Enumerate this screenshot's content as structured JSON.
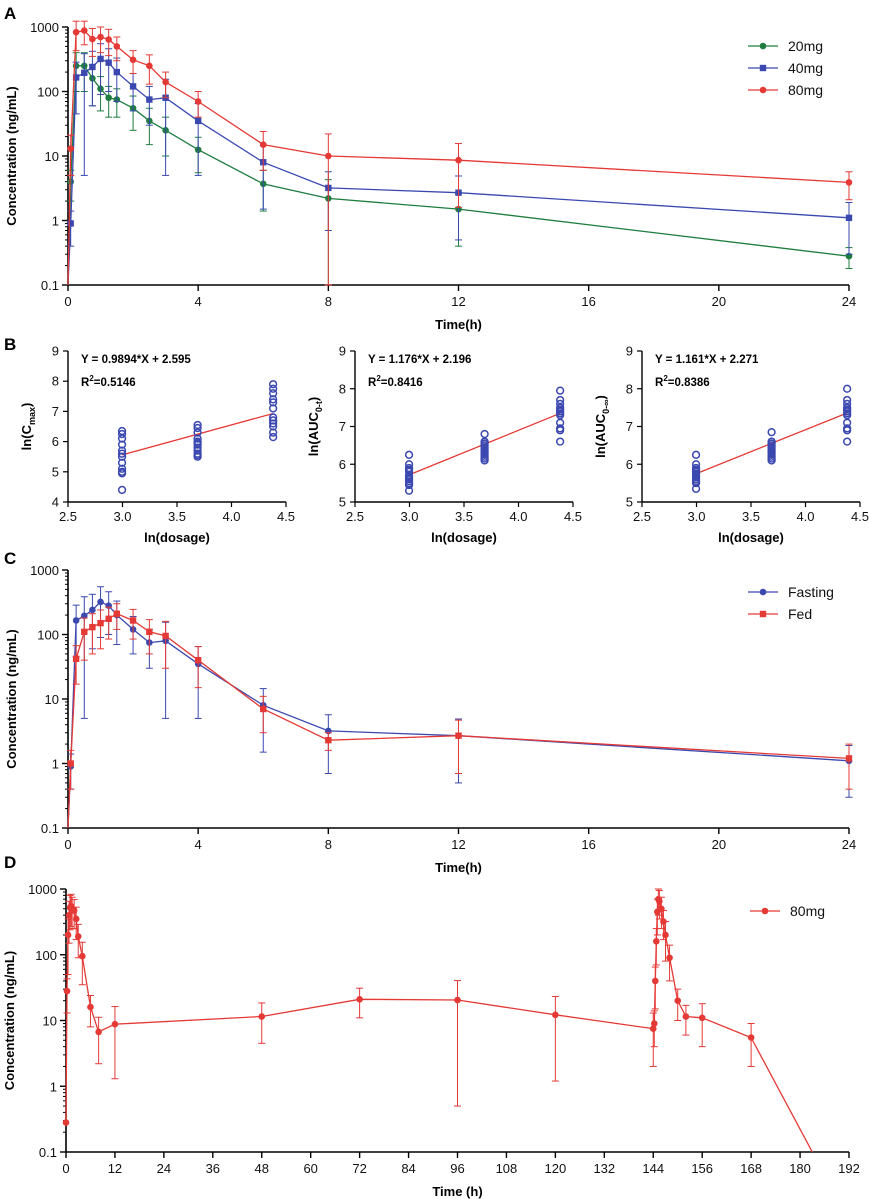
{
  "chart_data": [
    {
      "panel": "A",
      "type": "line",
      "xlabel": "Time(h)",
      "ylabel": "Concentration (ng/mL)",
      "yscale": "log",
      "ylim": [
        0.1,
        1000
      ],
      "xlim": [
        0,
        24
      ],
      "xticks": [
        "0",
        "4",
        "8",
        "12",
        "16",
        "20",
        "24"
      ],
      "yticks": [
        "0.1",
        "1",
        "10",
        "100",
        "1000"
      ],
      "legend_position": "top-right",
      "series": [
        {
          "name": "20mg",
          "color": "#1e7d3f",
          "marker": "circle",
          "x": [
            0,
            0.083,
            0.25,
            0.5,
            0.75,
            1,
            1.25,
            1.5,
            2,
            2.5,
            3,
            4,
            6,
            8,
            12,
            24
          ],
          "y": [
            0.1,
            4,
            250,
            250,
            160,
            110,
            80,
            75,
            55,
            35,
            25,
            12.5,
            3.7,
            2.2,
            1.5,
            0.28
          ],
          "err": [
            0,
            2,
            150,
            150,
            100,
            60,
            40,
            35,
            30,
            20,
            15,
            7,
            2.3,
            2.1,
            1.1,
            0.1
          ]
        },
        {
          "name": "40mg",
          "color": "#3a48b0",
          "marker": "square",
          "x": [
            0,
            0.083,
            0.25,
            0.5,
            0.75,
            1,
            1.25,
            1.5,
            2,
            2.5,
            3,
            4,
            6,
            8,
            12,
            24
          ],
          "y": [
            0.1,
            0.9,
            165,
            195,
            240,
            320,
            280,
            200,
            120,
            75,
            80,
            35,
            8,
            3.2,
            2.7,
            1.1
          ],
          "err": [
            0,
            0.5,
            120,
            190,
            180,
            230,
            180,
            130,
            70,
            45,
            75,
            30,
            6.5,
            2.5,
            2.2,
            0.8
          ]
        },
        {
          "name": "80mg",
          "color": "#e53935",
          "marker": "circle",
          "x": [
            0,
            0.083,
            0.25,
            0.5,
            0.75,
            1,
            1.25,
            1.5,
            2,
            2.5,
            3,
            4,
            6,
            8,
            12,
            24
          ],
          "y": [
            0.1,
            13,
            830,
            880,
            650,
            700,
            640,
            500,
            310,
            250,
            140,
            70,
            15,
            10,
            8.6,
            3.9
          ],
          "err": [
            0,
            8,
            400,
            350,
            300,
            300,
            280,
            200,
            120,
            120,
            60,
            30,
            9,
            12,
            7,
            1.8
          ]
        }
      ]
    },
    {
      "panel": "B1",
      "type": "scatter",
      "xlabel": "ln(dosage)",
      "ylabel_main": "ln(C",
      "ylabel_sub": "max",
      "ylabel_end": ")",
      "xlim": [
        2.5,
        4.5
      ],
      "ylim": [
        4,
        9
      ],
      "xticks": [
        "2.5",
        "3.0",
        "3.5",
        "4.0",
        "4.5"
      ],
      "yticks": [
        "4",
        "5",
        "6",
        "7",
        "8",
        "9"
      ],
      "equation": "Y = 0.9894*X + 2.595",
      "r2_prefix": "R",
      "r2_sup": "2",
      "r2_value": "=0.5146",
      "fit": {
        "slope": 0.9894,
        "intercept": 2.595,
        "x_range": [
          2.996,
          4.382
        ]
      },
      "points": {
        "x": [
          2.996,
          2.996,
          2.996,
          2.996,
          2.996,
          2.996,
          2.996,
          2.996,
          2.996,
          2.996,
          2.996,
          2.996,
          3.689,
          3.689,
          3.689,
          3.689,
          3.689,
          3.689,
          3.689,
          3.689,
          3.689,
          3.689,
          3.689,
          3.689,
          4.382,
          4.382,
          4.382,
          4.382,
          4.382,
          4.382,
          4.382,
          4.382,
          4.382,
          4.382,
          4.382,
          4.382
        ],
        "y": [
          6.35,
          6.25,
          6.1,
          5.9,
          5.7,
          5.6,
          5.5,
          5.3,
          5.1,
          5.0,
          4.95,
          4.4,
          6.55,
          6.45,
          6.3,
          6.1,
          6.0,
          5.95,
          5.9,
          5.8,
          5.7,
          5.6,
          5.55,
          5.5,
          7.9,
          7.75,
          7.6,
          7.4,
          7.3,
          7.1,
          6.8,
          6.7,
          6.6,
          6.5,
          6.3,
          6.15
        ]
      }
    },
    {
      "panel": "B2",
      "type": "scatter",
      "xlabel": "ln(dosage)",
      "ylabel_main": "ln(AUC",
      "ylabel_sub": "0-t",
      "ylabel_end": ")",
      "xlim": [
        2.5,
        4.5
      ],
      "ylim": [
        5,
        9
      ],
      "xticks": [
        "2.5",
        "3.0",
        "3.5",
        "4.0",
        "4.5"
      ],
      "yticks": [
        "5",
        "6",
        "7",
        "8",
        "9"
      ],
      "equation": "Y = 1.176*X + 2.196",
      "r2_prefix": "R",
      "r2_sup": "2",
      "r2_value": "=0.8416",
      "fit": {
        "slope": 1.176,
        "intercept": 2.196,
        "x_range": [
          2.996,
          4.382
        ]
      },
      "points": {
        "x": [
          2.996,
          2.996,
          2.996,
          2.996,
          2.996,
          2.996,
          2.996,
          2.996,
          2.996,
          2.996,
          2.996,
          2.996,
          3.689,
          3.689,
          3.689,
          3.689,
          3.689,
          3.689,
          3.689,
          3.689,
          3.689,
          3.689,
          3.689,
          3.689,
          4.382,
          4.382,
          4.382,
          4.382,
          4.382,
          4.382,
          4.382,
          4.382,
          4.382,
          4.382,
          4.382,
          4.382
        ],
        "y": [
          6.25,
          6.0,
          5.9,
          5.85,
          5.8,
          5.7,
          5.65,
          5.6,
          5.55,
          5.5,
          5.45,
          5.3,
          6.8,
          6.6,
          6.55,
          6.5,
          6.45,
          6.4,
          6.35,
          6.3,
          6.25,
          6.2,
          6.15,
          6.1,
          7.95,
          7.7,
          7.6,
          7.5,
          7.45,
          7.4,
          7.35,
          7.3,
          7.1,
          6.95,
          6.9,
          6.6
        ]
      }
    },
    {
      "panel": "B3",
      "type": "scatter",
      "xlabel": "ln(dosage)",
      "ylabel_main": "ln(AUC",
      "ylabel_sub": "0-∞",
      "ylabel_end": ")",
      "xlim": [
        2.5,
        4.5
      ],
      "ylim": [
        5,
        9
      ],
      "xticks": [
        "2.5",
        "3.0",
        "3.5",
        "4.0",
        "4.5"
      ],
      "yticks": [
        "5",
        "6",
        "7",
        "8",
        "9"
      ],
      "equation": "Y = 1.161*X + 2.271",
      "r2_prefix": "R",
      "r2_sup": "2",
      "r2_value": "=0.8386",
      "fit": {
        "slope": 1.161,
        "intercept": 2.271,
        "x_range": [
          2.996,
          4.382
        ]
      },
      "points": {
        "x": [
          2.996,
          2.996,
          2.996,
          2.996,
          2.996,
          2.996,
          2.996,
          2.996,
          2.996,
          2.996,
          2.996,
          2.996,
          3.689,
          3.689,
          3.689,
          3.689,
          3.689,
          3.689,
          3.689,
          3.689,
          3.689,
          3.689,
          3.689,
          3.689,
          4.382,
          4.382,
          4.382,
          4.382,
          4.382,
          4.382,
          4.382,
          4.382,
          4.382,
          4.382,
          4.382,
          4.382
        ],
        "y": [
          6.25,
          6.0,
          5.9,
          5.85,
          5.8,
          5.75,
          5.7,
          5.65,
          5.6,
          5.55,
          5.5,
          5.35,
          6.85,
          6.6,
          6.55,
          6.5,
          6.45,
          6.4,
          6.35,
          6.3,
          6.25,
          6.2,
          6.15,
          6.1,
          8.0,
          7.7,
          7.6,
          7.5,
          7.45,
          7.4,
          7.35,
          7.3,
          7.1,
          6.95,
          6.9,
          6.6
        ]
      }
    },
    {
      "panel": "C",
      "type": "line",
      "xlabel": "Time(h)",
      "ylabel": "Concentration (ng/mL)",
      "yscale": "log",
      "ylim": [
        0.1,
        1000
      ],
      "xlim": [
        0,
        24
      ],
      "xticks": [
        "0",
        "4",
        "8",
        "12",
        "16",
        "20",
        "24"
      ],
      "yticks": [
        "0.1",
        "1",
        "10",
        "100",
        "1000"
      ],
      "legend_position": "top-right",
      "series": [
        {
          "name": "Fasting",
          "color": "#3a48b0",
          "marker": "circle",
          "x": [
            0,
            0.083,
            0.25,
            0.5,
            0.75,
            1,
            1.25,
            1.5,
            2,
            2.5,
            3,
            4,
            6,
            8,
            12,
            24
          ],
          "y": [
            0.1,
            0.9,
            165,
            195,
            240,
            320,
            280,
            200,
            120,
            75,
            80,
            35,
            8,
            3.2,
            2.7,
            1.1
          ],
          "err": [
            0,
            0.5,
            120,
            190,
            180,
            230,
            180,
            130,
            70,
            45,
            75,
            30,
            6.5,
            2.5,
            2.2,
            0.8
          ]
        },
        {
          "name": "Fed",
          "color": "#e53935",
          "marker": "square",
          "x": [
            0,
            0.083,
            0.25,
            0.5,
            0.75,
            1,
            1.25,
            1.5,
            2,
            2.5,
            3,
            4,
            6,
            8,
            12,
            24
          ],
          "y": [
            0.1,
            1.0,
            42,
            110,
            130,
            150,
            175,
            210,
            165,
            110,
            95,
            40,
            7,
            2.3,
            2.7,
            1.2
          ],
          "err": [
            0,
            0.6,
            25,
            70,
            80,
            90,
            90,
            90,
            80,
            60,
            65,
            25,
            4,
            0.7,
            2.0,
            0.8
          ]
        }
      ]
    },
    {
      "panel": "D",
      "type": "line",
      "xlabel": "Time (h)",
      "ylabel": "Concentration (ng/mL)",
      "yscale": "log",
      "ylim": [
        0.1,
        1000
      ],
      "xlim": [
        0,
        192
      ],
      "xticks": [
        "0",
        "12",
        "24",
        "36",
        "48",
        "60",
        "72",
        "84",
        "96",
        "108",
        "120",
        "132",
        "144",
        "156",
        "168",
        "180",
        "192"
      ],
      "yticks": [
        "0.1",
        "1",
        "10",
        "100",
        "1000"
      ],
      "legend_position": "top-right",
      "series": [
        {
          "name": "80mg",
          "color": "#e53935",
          "marker": "circle",
          "x": [
            0,
            0.25,
            0.5,
            0.75,
            1,
            1.25,
            1.5,
            2,
            2.5,
            3,
            4,
            6,
            8,
            12,
            48,
            72,
            96,
            120,
            144,
            144.25,
            144.5,
            144.75,
            145,
            145.25,
            145.5,
            146,
            146.5,
            147,
            148,
            150,
            152,
            156,
            168,
            183
          ],
          "y": [
            0.28,
            28,
            200,
            400,
            520,
            550,
            500,
            470,
            350,
            190,
            95,
            16,
            6.7,
            8.8,
            11.5,
            21,
            20.5,
            12.2,
            7.5,
            9,
            40,
            160,
            450,
            700,
            650,
            500,
            320,
            200,
            90,
            20,
            11.5,
            11,
            5.5,
            0.1
          ],
          "err": [
            0,
            15,
            150,
            250,
            280,
            280,
            250,
            220,
            180,
            100,
            60,
            8,
            4.5,
            7.5,
            7,
            10,
            20,
            11,
            5.5,
            5,
            25,
            90,
            250,
            300,
            300,
            250,
            150,
            120,
            50,
            10,
            5.5,
            7,
            3.5,
            0
          ]
        }
      ]
    }
  ],
  "panel_labels": [
    "A",
    "B",
    "C",
    "D"
  ]
}
